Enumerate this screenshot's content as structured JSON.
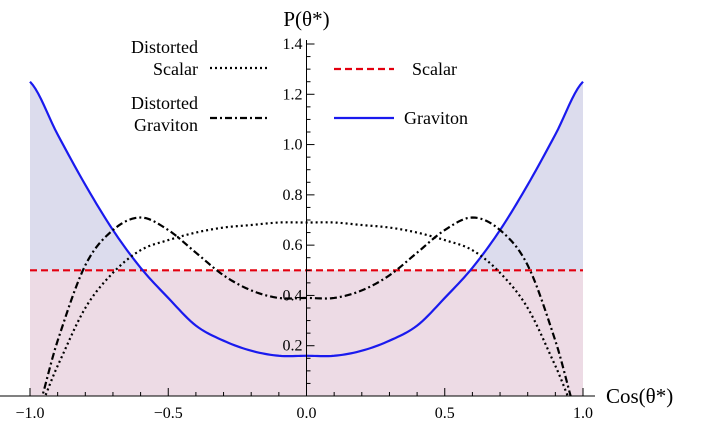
{
  "chart_data": {
    "type": "line",
    "xlabel": "Cos(θ*)",
    "ylabel": "P(θ*)",
    "xlim": [
      -1.0,
      1.0
    ],
    "ylim": [
      0,
      1.4
    ],
    "x_ticks": [
      "−1.0",
      "−0.5",
      "0.0",
      "0.5",
      "1.0"
    ],
    "y_ticks": [
      "0.2",
      "0.4",
      "0.6",
      "0.8",
      "1.0",
      "1.2",
      "1.4"
    ],
    "x": [
      -1.0,
      -0.9,
      -0.8,
      -0.7,
      -0.6,
      -0.5,
      -0.4,
      -0.3,
      -0.2,
      -0.1,
      0.0,
      0.1,
      0.2,
      0.3,
      0.4,
      0.5,
      0.6,
      0.7,
      0.8,
      0.9,
      1.0
    ],
    "series": [
      {
        "name": "Scalar",
        "style": "dashed",
        "color": "#e3000f",
        "values": [
          0.5,
          0.5,
          0.5,
          0.5,
          0.5,
          0.5,
          0.5,
          0.5,
          0.5,
          0.5,
          0.5,
          0.5,
          0.5,
          0.5,
          0.5,
          0.5,
          0.5,
          0.5,
          0.5,
          0.5,
          0.5
        ]
      },
      {
        "name": "Graviton",
        "style": "solid",
        "color": "#1a1aee",
        "values": [
          1.25,
          1.04,
          0.84,
          0.66,
          0.51,
          0.39,
          0.28,
          0.22,
          0.18,
          0.16,
          0.16,
          0.16,
          0.18,
          0.22,
          0.28,
          0.39,
          0.51,
          0.66,
          0.84,
          1.04,
          1.25
        ]
      },
      {
        "name": "Distorted Scalar",
        "style": "dotted",
        "color": "#000000",
        "values": [
          -0.12,
          0.12,
          0.35,
          0.49,
          0.58,
          0.62,
          0.65,
          0.67,
          0.68,
          0.69,
          0.69,
          0.69,
          0.68,
          0.67,
          0.65,
          0.62,
          0.58,
          0.49,
          0.35,
          0.12,
          -0.12
        ]
      },
      {
        "name": "Distorted Graviton",
        "style": "dash-dot",
        "color": "#000000",
        "values": [
          -0.14,
          0.22,
          0.52,
          0.66,
          0.71,
          0.66,
          0.57,
          0.48,
          0.42,
          0.39,
          0.39,
          0.39,
          0.42,
          0.48,
          0.57,
          0.66,
          0.71,
          0.66,
          0.52,
          0.22,
          -0.14
        ]
      }
    ],
    "shading": {
      "below_scalar_color": "#eddbe5",
      "between_graviton_and_scalar_color": "#dcdced"
    },
    "legend": {
      "placement": "top",
      "entries": [
        {
          "label_lines": [
            "Distorted",
            "Scalar"
          ],
          "series": "Distorted Scalar"
        },
        {
          "label_lines": [
            "Distorted",
            "Graviton"
          ],
          "series": "Distorted Graviton"
        },
        {
          "label_lines": [
            "Scalar"
          ],
          "series": "Scalar"
        },
        {
          "label_lines": [
            "Graviton"
          ],
          "series": "Graviton"
        }
      ]
    },
    "grid": false
  }
}
